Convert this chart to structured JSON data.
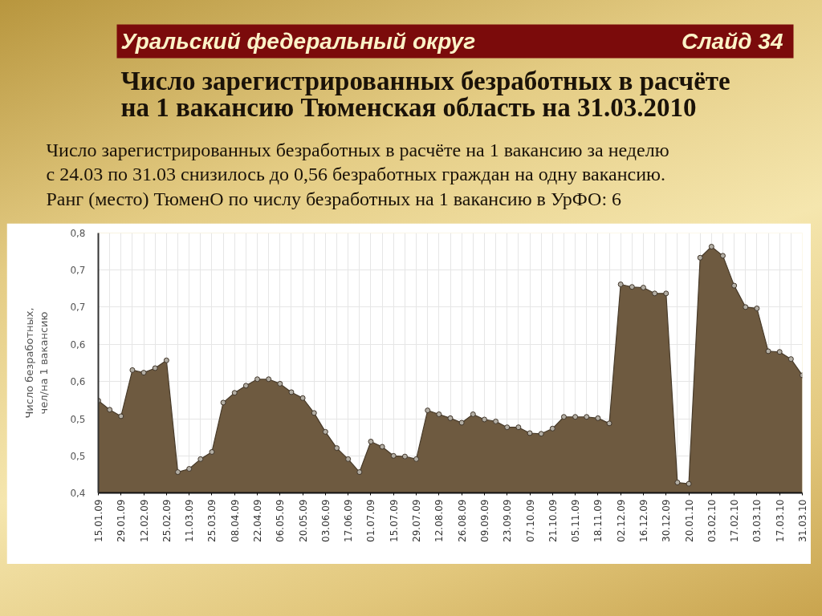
{
  "chart_data": {
    "type": "area",
    "title": "Число зарегистрированных безработных в расчёте\nна 1 вакансию Тюменская область на 31.03.2010",
    "subtitle": "Число зарегистрированных безработных в расчёте на 1 вакансию за неделю\nс 24.03 по 31.03 снизилось до 0,56 безработных граждан на одну вакансию.\nРанг (место) ТюменО по числу безработных на 1 вакансию в УрФО: 6",
    "annotations": [
      "Уральский федеральный округ",
      "Слайд 34"
    ],
    "ylabel": "Число безработных,\nчел/на 1 вакансию",
    "categories": [
      "15.01.09",
      null,
      "29.01.09",
      null,
      "12.02.09",
      null,
      "25.02.09",
      null,
      "11.03.09",
      null,
      "25.03.09",
      null,
      "08.04.09",
      null,
      "22.04.09",
      null,
      "06.05.09",
      null,
      "20.05.09",
      null,
      "03.06.09",
      null,
      "17.06.09",
      null,
      "01.07.09",
      null,
      "15.07.09",
      null,
      "29.07.09",
      null,
      "12.08.09",
      null,
      "26.08.09",
      null,
      "09.09.09",
      null,
      "23.09.09",
      null,
      "07.10.09",
      null,
      "21.10.09",
      null,
      "05.11.09",
      null,
      "18.11.09",
      null,
      "02.12.09",
      null,
      "16.12.09",
      null,
      "30.12.09",
      null,
      "20.01.10",
      null,
      "03.02.10",
      null,
      "17.02.10",
      null,
      "03.03.10",
      null,
      "17.03.10",
      null,
      "31.03.10"
    ],
    "values": [
      0.542,
      0.528,
      0.518,
      0.589,
      0.585,
      0.592,
      0.604,
      0.432,
      0.437,
      0.452,
      0.463,
      0.539,
      0.554,
      0.565,
      0.575,
      0.575,
      0.568,
      0.555,
      0.546,
      0.523,
      0.494,
      0.469,
      0.452,
      0.432,
      0.479,
      0.471,
      0.457,
      0.456,
      0.452,
      0.527,
      0.521,
      0.515,
      0.508,
      0.521,
      0.513,
      0.51,
      0.501,
      0.501,
      0.492,
      0.491,
      0.499,
      0.517,
      0.517,
      0.517,
      0.515,
      0.507,
      0.721,
      0.717,
      0.716,
      0.707,
      0.707,
      0.416,
      0.414,
      0.762,
      0.779,
      0.765,
      0.719,
      0.686,
      0.684,
      0.618,
      0.617,
      0.606,
      0.581
    ],
    "color": "#6e5a40",
    "ylim": [
      0.4,
      0.8
    ],
    "yticks": [
      {
        "value": 0.4,
        "label": "0,4"
      },
      {
        "value": 0.457,
        "label": "0,5"
      },
      {
        "value": 0.514,
        "label": "0,5"
      },
      {
        "value": 0.571,
        "label": "0,6"
      },
      {
        "value": 0.629,
        "label": "0,6"
      },
      {
        "value": 0.686,
        "label": "0,7"
      },
      {
        "value": 0.743,
        "label": "0,7"
      },
      {
        "value": 0.8,
        "label": "0,8"
      }
    ],
    "grid": true,
    "marker": "circle"
  }
}
